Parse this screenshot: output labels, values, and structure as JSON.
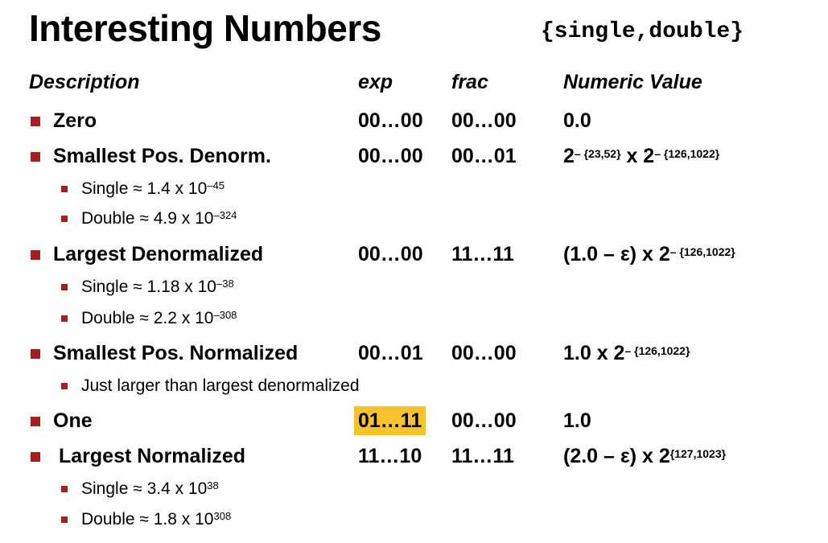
{
  "title": "Interesting Numbers",
  "subtitle": "{single,double}",
  "headers": {
    "description": "Description",
    "exp": "exp",
    "frac": "frac",
    "value": "Numeric Value"
  },
  "rows": [
    {
      "label": "Zero",
      "exp": "00…00",
      "frac": "00…00",
      "value_base": "0.0"
    },
    {
      "label": "Smallest Pos. Denorm.",
      "exp": "00…00",
      "frac": "00…01",
      "value_a": "2",
      "value_a_sup": "– {23,52}",
      "value_mid": " x 2",
      "value_b_sup": "– {126,1022}"
    },
    {
      "label": "Largest Denormalized",
      "exp": "00…00",
      "frac": "11…11",
      "value_base": "(1.0 – ε) x 2",
      "value_sup": "– {126,1022}"
    },
    {
      "label": "Smallest Pos. Normalized",
      "exp": "00…01",
      "frac": "00…00",
      "value_base": "1.0 x 2",
      "value_sup": "– {126,1022}"
    },
    {
      "label": "One",
      "exp": "01…11",
      "frac": "00…00",
      "value_base": "1.0"
    },
    {
      "label": "Largest Normalized",
      "exp": "11…10",
      "frac": "11…11",
      "value_base": "(2.0 – ε) x 2",
      "value_sup": "{127,1023}"
    }
  ],
  "subs": {
    "denorm_single": {
      "text": "Single ≈ 1.4 x 10",
      "sup": "–45"
    },
    "denorm_double": {
      "text": "Double ≈ 4.9 x 10",
      "sup": "–324"
    },
    "ldenorm_single": {
      "text": "Single ≈ 1.18 x 10",
      "sup": "–38"
    },
    "ldenorm_double": {
      "text": "Double ≈ 2.2 x 10",
      "sup": "–308"
    },
    "snorm_note": {
      "text": "Just larger than largest denormalized"
    },
    "lnorm_single": {
      "text": "Single ≈ 3.4 x 10",
      "sup": "38"
    },
    "lnorm_double": {
      "text": "Double ≈ 1.8 x 10",
      "sup": "308"
    }
  },
  "colors": {
    "bullet": "#a41f1f",
    "highlight": "#f6c22e"
  }
}
